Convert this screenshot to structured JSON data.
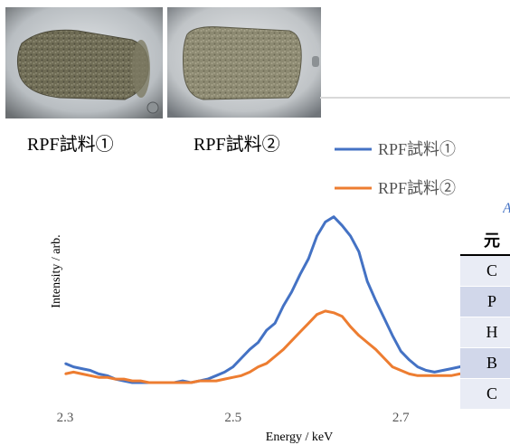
{
  "samples": {
    "caption_1": "RPF試料①",
    "caption_2": "RPF試料②"
  },
  "colors": {
    "series_1": "#4472c4",
    "series_2": "#ed7d31",
    "grid": "#d9d9d9",
    "table_header_line": "#000000",
    "table_row_light": "#e9ecf5",
    "table_row_dark": "#d1d7ea",
    "photo_background": "#cfd3d6",
    "pellet_1": "#6f6c55",
    "pellet_2": "#8d8a72"
  },
  "chart_data": {
    "type": "line",
    "xlabel": "Energy / keV",
    "ylabel": "Intensity / arb.",
    "xlim": [
      2.3,
      2.83
    ],
    "ylim": [
      0,
      1
    ],
    "x_ticks": [
      "2.3",
      "2.5",
      "2.7"
    ],
    "grid": "top border line only",
    "legend_position": "top-right",
    "series": [
      {
        "name": "RPF試料①",
        "x": [
          2.3,
          2.31,
          2.32,
          2.33,
          2.34,
          2.35,
          2.36,
          2.37,
          2.38,
          2.39,
          2.4,
          2.41,
          2.42,
          2.43,
          2.44,
          2.45,
          2.46,
          2.47,
          2.48,
          2.49,
          2.5,
          2.51,
          2.52,
          2.53,
          2.54,
          2.55,
          2.56,
          2.57,
          2.58,
          2.59,
          2.6,
          2.61,
          2.62,
          2.63,
          2.64,
          2.65,
          2.66,
          2.67,
          2.68,
          2.69,
          2.7,
          2.71,
          2.72,
          2.73,
          2.74,
          2.75,
          2.76,
          2.77,
          2.78,
          2.79,
          2.8,
          2.81,
          2.82,
          2.83
        ],
        "values": [
          0.11,
          0.09,
          0.08,
          0.07,
          0.05,
          0.04,
          0.02,
          0.01,
          0.0,
          0.0,
          0.0,
          0.0,
          0.0,
          0.0,
          0.01,
          0.0,
          0.01,
          0.02,
          0.04,
          0.06,
          0.09,
          0.14,
          0.19,
          0.23,
          0.3,
          0.34,
          0.44,
          0.52,
          0.62,
          0.71,
          0.84,
          0.92,
          0.95,
          0.9,
          0.84,
          0.75,
          0.58,
          0.47,
          0.37,
          0.27,
          0.18,
          0.13,
          0.09,
          0.07,
          0.06,
          0.07,
          0.08,
          0.09,
          0.1,
          0.11,
          0.13,
          0.13,
          0.14,
          0.16
        ]
      },
      {
        "name": "RPF試料②",
        "x": [
          2.3,
          2.31,
          2.32,
          2.33,
          2.34,
          2.35,
          2.36,
          2.37,
          2.38,
          2.39,
          2.4,
          2.41,
          2.42,
          2.43,
          2.44,
          2.45,
          2.46,
          2.47,
          2.48,
          2.49,
          2.5,
          2.51,
          2.52,
          2.53,
          2.54,
          2.55,
          2.56,
          2.57,
          2.58,
          2.59,
          2.6,
          2.61,
          2.62,
          2.63,
          2.64,
          2.65,
          2.66,
          2.67,
          2.68,
          2.69,
          2.7,
          2.71,
          2.72,
          2.73,
          2.74,
          2.75,
          2.76,
          2.77,
          2.78,
          2.79,
          2.8,
          2.81,
          2.82,
          2.83
        ],
        "values": [
          0.05,
          0.06,
          0.05,
          0.04,
          0.03,
          0.03,
          0.02,
          0.02,
          0.01,
          0.01,
          0.0,
          0.0,
          0.0,
          0.0,
          0.0,
          0.0,
          0.01,
          0.01,
          0.01,
          0.02,
          0.03,
          0.04,
          0.06,
          0.09,
          0.11,
          0.15,
          0.19,
          0.24,
          0.29,
          0.34,
          0.39,
          0.41,
          0.4,
          0.38,
          0.32,
          0.27,
          0.23,
          0.19,
          0.14,
          0.09,
          0.07,
          0.05,
          0.04,
          0.04,
          0.04,
          0.04,
          0.04,
          0.05,
          0.05,
          0.06,
          0.07,
          0.09,
          0.11,
          0.13
        ]
      }
    ]
  },
  "table": {
    "rows": [
      "元",
      "C",
      "P",
      "H",
      "B",
      "C"
    ],
    "title_fragment": "A"
  }
}
